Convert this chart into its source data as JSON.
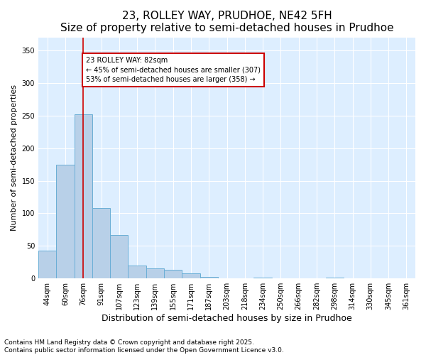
{
  "title": "23, ROLLEY WAY, PRUDHOE, NE42 5FH",
  "subtitle": "Size of property relative to semi-detached houses in Prudhoe",
  "xlabel": "Distribution of semi-detached houses by size in Prudhoe",
  "ylabel": "Number of semi-detached properties",
  "categories": [
    "44sqm",
    "60sqm",
    "76sqm",
    "91sqm",
    "107sqm",
    "123sqm",
    "139sqm",
    "155sqm",
    "171sqm",
    "187sqm",
    "203sqm",
    "218sqm",
    "234sqm",
    "250sqm",
    "266sqm",
    "282sqm",
    "298sqm",
    "314sqm",
    "330sqm",
    "345sqm",
    "361sqm"
  ],
  "values": [
    43,
    175,
    252,
    108,
    67,
    20,
    15,
    13,
    8,
    2,
    0,
    0,
    1,
    0,
    0,
    0,
    1,
    0,
    0,
    0,
    0
  ],
  "bar_color": "#b8d0e8",
  "bar_edge_color": "#6aaed6",
  "background_color": "#ddeeff",
  "property_label": "23 ROLLEY WAY: 82sqm",
  "pct_smaller": 45,
  "count_smaller": 307,
  "pct_larger": 53,
  "count_larger": 358,
  "vline_x_index": 2,
  "vline_color": "#cc0000",
  "annotation_box_color": "#cc0000",
  "ylim": [
    0,
    370
  ],
  "yticks": [
    0,
    50,
    100,
    150,
    200,
    250,
    300,
    350
  ],
  "title_fontsize": 11,
  "subtitle_fontsize": 9.5,
  "xlabel_fontsize": 9,
  "ylabel_fontsize": 8,
  "tick_fontsize": 7,
  "annot_fontsize": 7,
  "footnote": "Contains HM Land Registry data © Crown copyright and database right 2025.\nContains public sector information licensed under the Open Government Licence v3.0.",
  "footnote_fontsize": 6.5
}
